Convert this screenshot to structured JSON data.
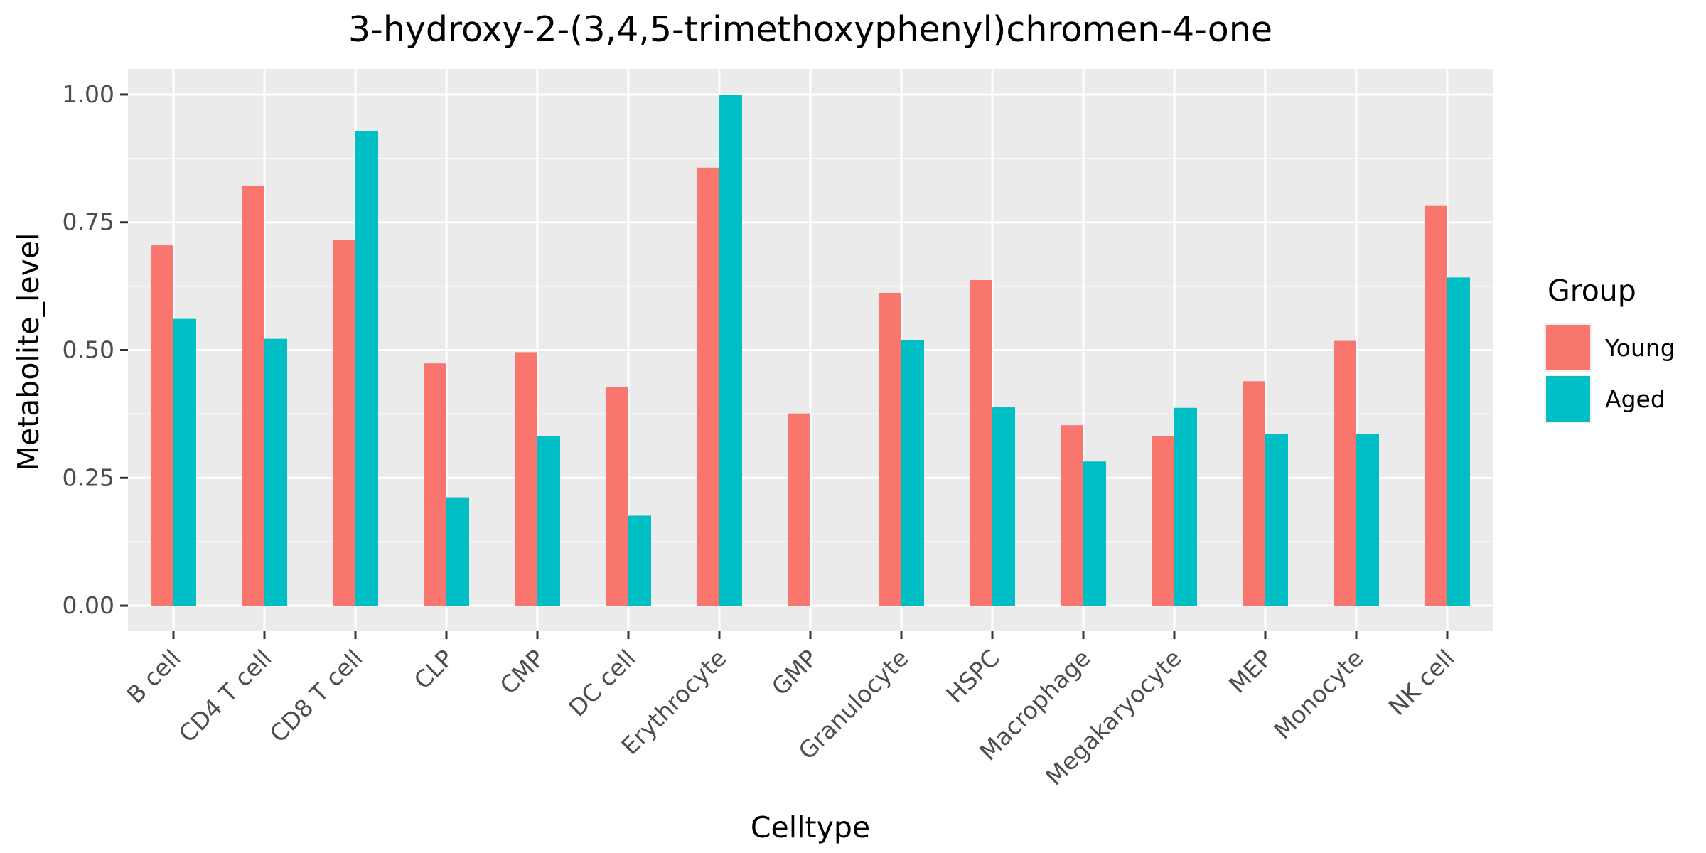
{
  "chart_data": {
    "type": "bar",
    "title": "3-hydroxy-2-(3,4,5-trimethoxyphenyl)chromen-4-one",
    "xlabel": "Celltype",
    "ylabel": "Metabolite_level",
    "categories": [
      "B cell",
      "CD4 T cell",
      "CD8 T cell",
      "CLP",
      "CMP",
      "DC cell",
      "Erythrocyte",
      "GMP",
      "Granulocyte",
      "HSPC",
      "Macrophage",
      "Megakaryocyte",
      "MEP",
      "Monocyte",
      "NK cell"
    ],
    "series": [
      {
        "name": "Young",
        "color": "#F8766D",
        "values": [
          0.705,
          0.822,
          0.715,
          0.474,
          0.496,
          0.428,
          0.857,
          0.376,
          0.612,
          0.637,
          0.353,
          0.332,
          0.439,
          0.518,
          0.782
        ]
      },
      {
        "name": "Aged",
        "color": "#00BFC4",
        "values": [
          0.561,
          0.522,
          0.929,
          0.212,
          0.331,
          0.176,
          1.0,
          null,
          0.52,
          0.388,
          0.282,
          0.387,
          0.336,
          0.336,
          0.642
        ]
      }
    ],
    "ylim": [
      -0.05,
      1.05
    ],
    "yticks": [
      0.0,
      0.25,
      0.5,
      0.75,
      1.0
    ],
    "ytick_labels": [
      "0.00",
      "0.25",
      "0.50",
      "0.75",
      "1.00"
    ],
    "grid": true,
    "panel_background": "#EBEBEB",
    "legend": {
      "title": "Group",
      "position": "right"
    }
  }
}
